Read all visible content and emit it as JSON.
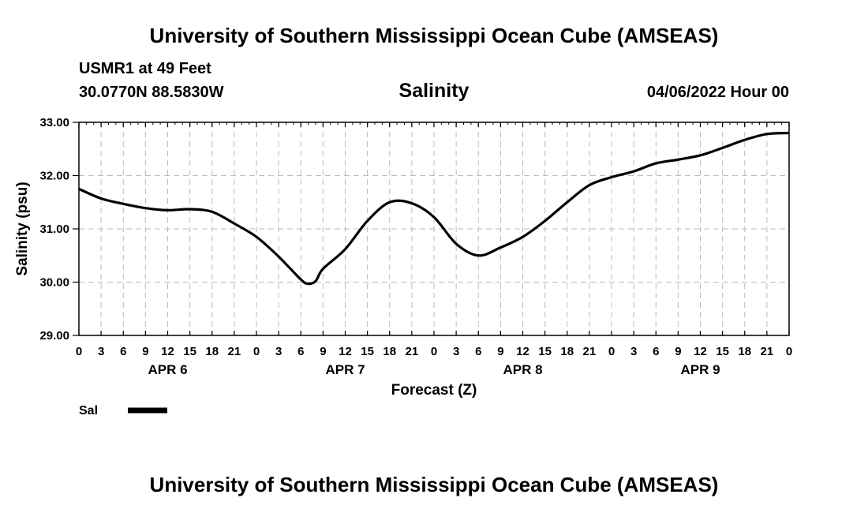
{
  "header": {
    "title": "University of Southern Mississippi Ocean Cube (AMSEAS)",
    "station": "USMR1 at 49 Feet",
    "coords": "30.0770N  88.5830W",
    "variable": "Salinity",
    "datetime": "04/06/2022 Hour 00"
  },
  "footer": {
    "title": "University of Southern Mississippi Ocean Cube (AMSEAS)"
  },
  "colors": {
    "line": "#000000",
    "grid": "#bbbbbb"
  },
  "chart_data": {
    "type": "line",
    "title": "Salinity",
    "xlabel": "Forecast (Z)",
    "ylabel": "Salinity (psu)",
    "ylim": [
      29.0,
      33.0
    ],
    "xlim_hours": [
      0,
      96
    ],
    "y_ticks": [
      "29.00",
      "30.00",
      "31.00",
      "32.00",
      "33.00"
    ],
    "y_tick_values": [
      29,
      30,
      31,
      32,
      33
    ],
    "x_tick_hours": [
      0,
      3,
      6,
      9,
      12,
      15,
      18,
      21,
      24,
      27,
      30,
      33,
      36,
      39,
      42,
      45,
      48,
      51,
      54,
      57,
      60,
      63,
      66,
      69,
      72,
      75,
      78,
      81,
      84,
      87,
      90,
      93,
      96
    ],
    "x_tick_labels": [
      "0",
      "3",
      "6",
      "9",
      "12",
      "15",
      "18",
      "21",
      "0",
      "3",
      "6",
      "9",
      "12",
      "15",
      "18",
      "21",
      "0",
      "3",
      "6",
      "9",
      "12",
      "15",
      "18",
      "21",
      "0",
      "3",
      "6",
      "9",
      "12",
      "15",
      "18",
      "21",
      "0"
    ],
    "day_labels": [
      {
        "label": "APR 6",
        "hour": 12
      },
      {
        "label": "APR 7",
        "hour": 36
      },
      {
        "label": "APR 8",
        "hour": 60
      },
      {
        "label": "APR 9",
        "hour": 84
      }
    ],
    "grid": true,
    "legend": {
      "position": "bottom-left",
      "label": "Sal"
    },
    "series": [
      {
        "name": "Sal",
        "x": [
          0,
          3,
          6,
          9,
          12,
          15,
          18,
          21,
          24,
          27,
          30,
          31,
          32,
          33,
          36,
          39,
          42,
          45,
          48,
          51,
          54,
          57,
          60,
          63,
          66,
          69,
          72,
          75,
          78,
          81,
          84,
          87,
          90,
          93,
          96
        ],
        "values": [
          31.75,
          31.57,
          31.47,
          31.39,
          31.35,
          31.37,
          31.32,
          31.1,
          30.85,
          30.48,
          30.05,
          29.97,
          30.02,
          30.25,
          30.62,
          31.15,
          31.5,
          31.48,
          31.22,
          30.72,
          30.5,
          30.65,
          30.85,
          31.15,
          31.5,
          31.82,
          31.97,
          32.08,
          32.23,
          32.3,
          32.38,
          32.52,
          32.67,
          32.78,
          32.8
        ]
      }
    ]
  }
}
